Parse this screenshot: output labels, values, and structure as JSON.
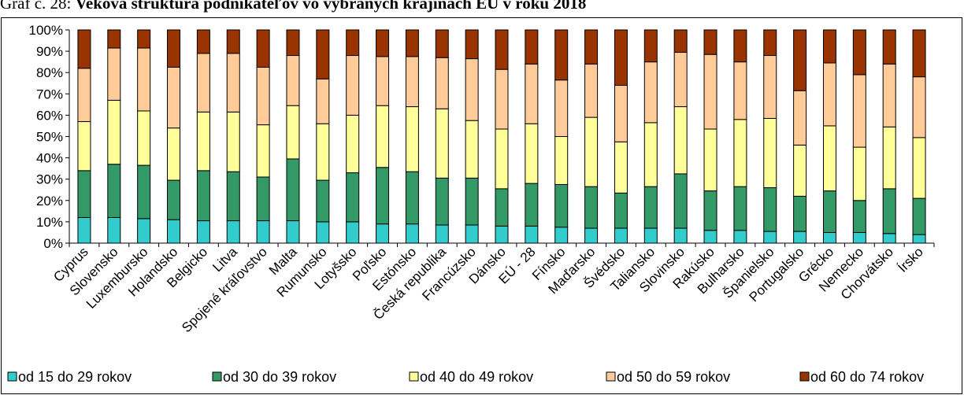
{
  "caption": {
    "lead": "Graf č. 28:",
    "title": "Veková štruktúra podnikateľov vo vybraných krajinách EÚ v roku 2018"
  },
  "chart_data": {
    "type": "bar",
    "stacked": "percent",
    "ylim": [
      0,
      100
    ],
    "ytick_step": 10,
    "ytick_suffix": "%",
    "grid": false,
    "legend_position": "bottom",
    "categories": [
      "Cyprus",
      "Slovensko",
      "Luxembursko",
      "Holandsko",
      "Belgicko",
      "Litva",
      "Spojené kráľovstvo",
      "Malta",
      "Rumunsko",
      "Lotyšsko",
      "Poľsko",
      "Estónsko",
      "Česká republika",
      "Francúzsko",
      "Dánsko",
      "EÚ - 28",
      "Fínsko",
      "Maďarsko",
      "Švédsko",
      "Taliansko",
      "Slovinsko",
      "Rakúsko",
      "Bulharsko",
      "Španielsko",
      "Portugalsko",
      "Grécko",
      "Nemecko",
      "Chorvátsko",
      "Írsko"
    ],
    "series": [
      {
        "name": "od 15 do 29 rokov",
        "color": "#33CCCC",
        "values": [
          12,
          12,
          11.5,
          11,
          10.5,
          10.5,
          10.5,
          10.5,
          10,
          10,
          9,
          9,
          8.5,
          8.5,
          8,
          8,
          7.5,
          7,
          7,
          7,
          7,
          6,
          6,
          5.5,
          5.5,
          5,
          5,
          4.5,
          4
        ]
      },
      {
        "name": "od 30 do 39 rokov",
        "color": "#339966",
        "values": [
          22,
          25,
          25,
          18.5,
          23.5,
          23,
          20.5,
          29,
          19.5,
          23,
          26.5,
          24.5,
          22,
          22,
          17.5,
          20,
          20,
          19.5,
          16.5,
          19.5,
          25.5,
          18.5,
          20.5,
          20.5,
          16.5,
          19.5,
          15,
          21,
          17
        ]
      },
      {
        "name": "od 40 do 49 rokov",
        "color": "#FFFF99",
        "values": [
          23,
          30,
          25.5,
          24.5,
          27.5,
          28,
          24.5,
          25,
          26.5,
          27,
          29,
          30.5,
          32.5,
          27,
          28,
          28,
          22.5,
          32.5,
          24,
          30,
          31.5,
          29,
          31.5,
          32.5,
          24,
          30.5,
          25,
          29,
          28.5
        ]
      },
      {
        "name": "od 50 do 59 rokov",
        "color": "#FFCC99",
        "values": [
          25,
          24.5,
          29.5,
          28.5,
          27.5,
          27.5,
          27,
          23.5,
          21,
          28,
          23,
          23.5,
          24,
          29,
          28,
          28,
          26.5,
          25,
          26.5,
          28.5,
          25.5,
          35,
          27,
          29.5,
          25.5,
          29.5,
          34,
          29.5,
          28.5
        ]
      },
      {
        "name": "od 60 do 74 rokov",
        "color": "#993300",
        "values": [
          18,
          8.5,
          8.5,
          17.5,
          11,
          11,
          17.5,
          12,
          23,
          12,
          12.5,
          12.5,
          13,
          13.5,
          18.5,
          16,
          23.5,
          16,
          26,
          15,
          10.5,
          11.5,
          15,
          12,
          28.5,
          15.5,
          21,
          16,
          22
        ]
      }
    ]
  }
}
